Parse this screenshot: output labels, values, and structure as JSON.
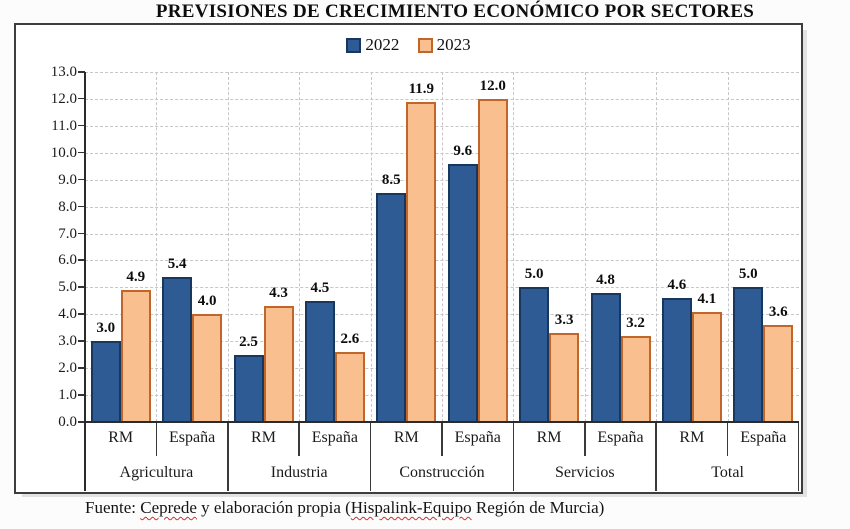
{
  "chart_data": {
    "type": "bar",
    "title": "PREVISIONES DE CRECIMIENTO ECONÓMICO POR SECTORES",
    "sectors": [
      "Agricultura",
      "Industria",
      "Construcción",
      "Servicios",
      "Total"
    ],
    "regions": [
      "RM",
      "España"
    ],
    "series": [
      {
        "name": "2022",
        "color": "#2F5B94",
        "border_color": "#17375E",
        "values": [
          3.0,
          5.4,
          2.5,
          4.5,
          8.5,
          9.6,
          5.0,
          4.8,
          4.6,
          5.0
        ]
      },
      {
        "name": "2023",
        "color": "#FABF8F",
        "border_color": "#C0662B",
        "values": [
          4.9,
          4.0,
          4.3,
          2.6,
          11.9,
          12.0,
          3.3,
          3.2,
          4.1,
          3.6
        ]
      }
    ],
    "values_order": "sector-major: for each sector, RM then España",
    "ylim": [
      0,
      13
    ],
    "ytick_step": 1,
    "ytick_format": "one decimal (0.0 … 13.0)",
    "grid": "dashed horizontal per unit and vertical per subgroup boundary",
    "legend_position": "top center",
    "value_labels": "above each bar, one decimal"
  },
  "footer": {
    "prefix": "Fuente: ",
    "source_1": "Ceprede",
    "middle": " y elaboración propia (",
    "source_2": "Hispalink-Equipo",
    "suffix": " Región de Murcia)",
    "spellcheck_underline_color": "#cc3333"
  }
}
